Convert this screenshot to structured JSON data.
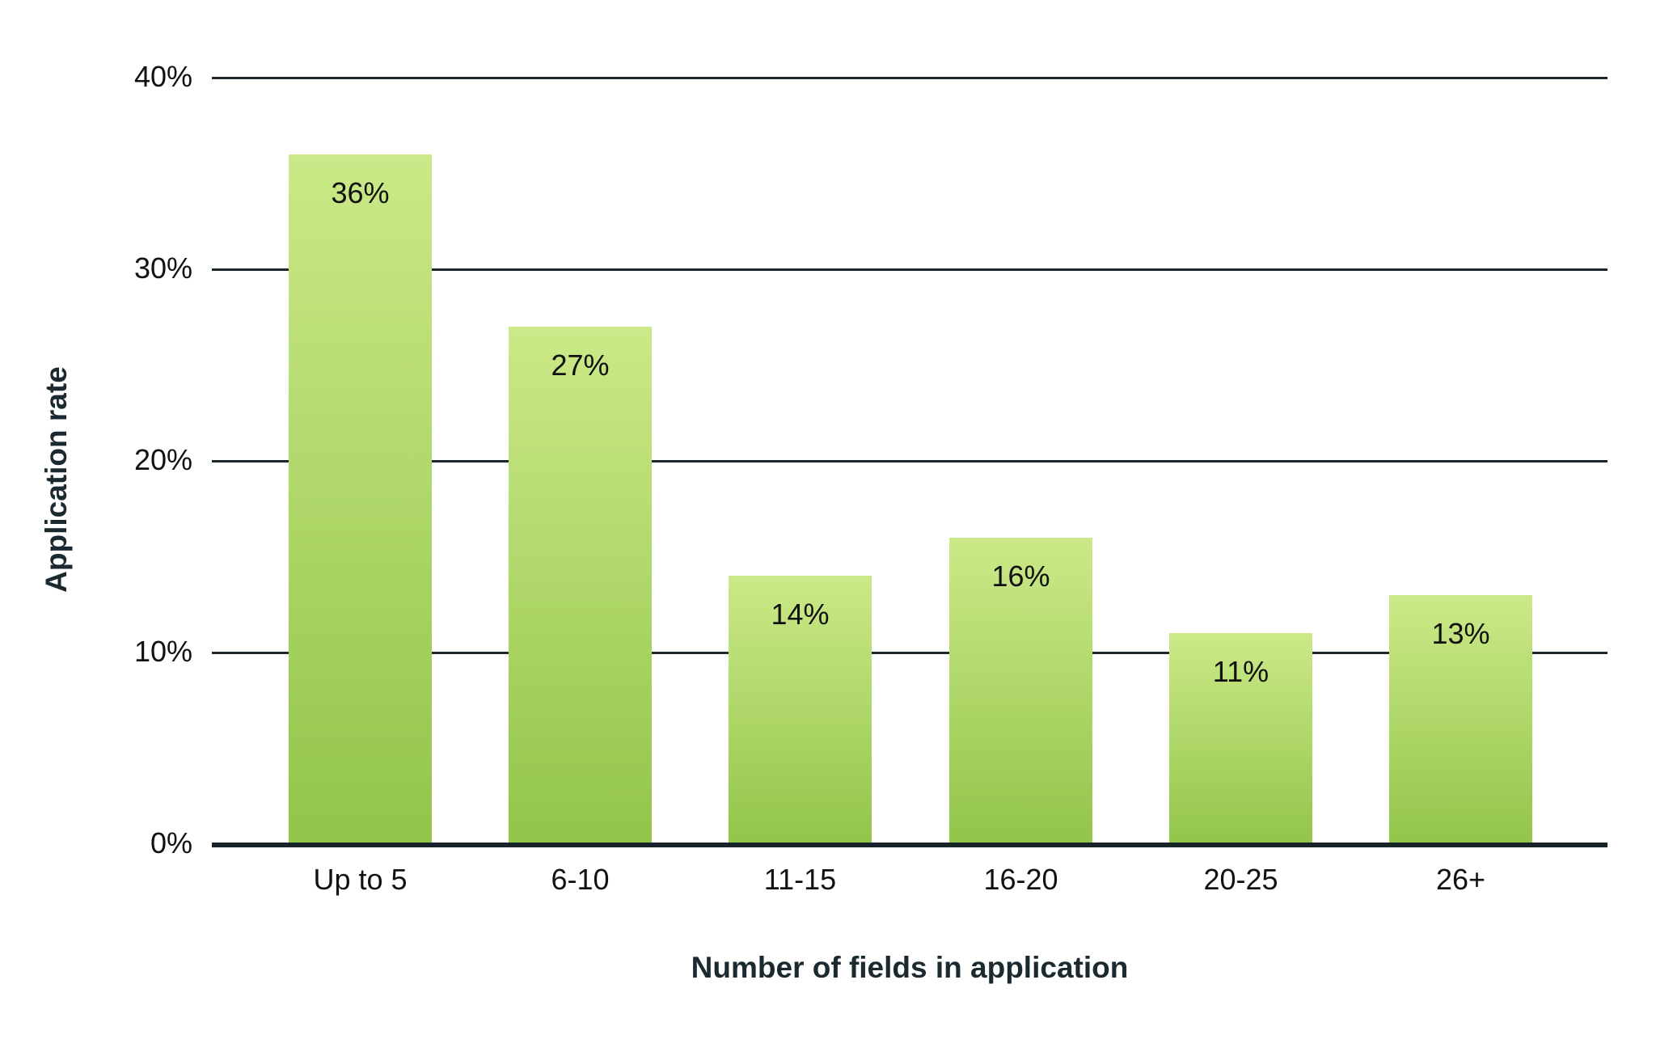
{
  "chart_data": {
    "type": "bar",
    "title": "",
    "xlabel": "Number of fields in application",
    "ylabel": "Application rate",
    "categories": [
      "Up to 5",
      "6-10",
      "11-15",
      "16-20",
      "20-25",
      "26+"
    ],
    "values": [
      36,
      27,
      14,
      16,
      11,
      13
    ],
    "value_labels": [
      "36%",
      "27%",
      "14%",
      "16%",
      "11%",
      "13%"
    ],
    "unit": "%",
    "ylim": [
      0,
      40
    ],
    "yticks": [
      0,
      10,
      20,
      30,
      40
    ],
    "ytick_labels": [
      "0%",
      "10%",
      "20%",
      "30%",
      "40%"
    ],
    "grid": {
      "y": true,
      "x": false
    },
    "legend": null,
    "colors": {
      "bar_gradient_top": "#cbe988",
      "bar_gradient_bottom": "#92c54a",
      "gridline": "#1c282e",
      "baseline": "#18232a",
      "axis_title": "#1b2a30",
      "text": "#111111"
    }
  }
}
